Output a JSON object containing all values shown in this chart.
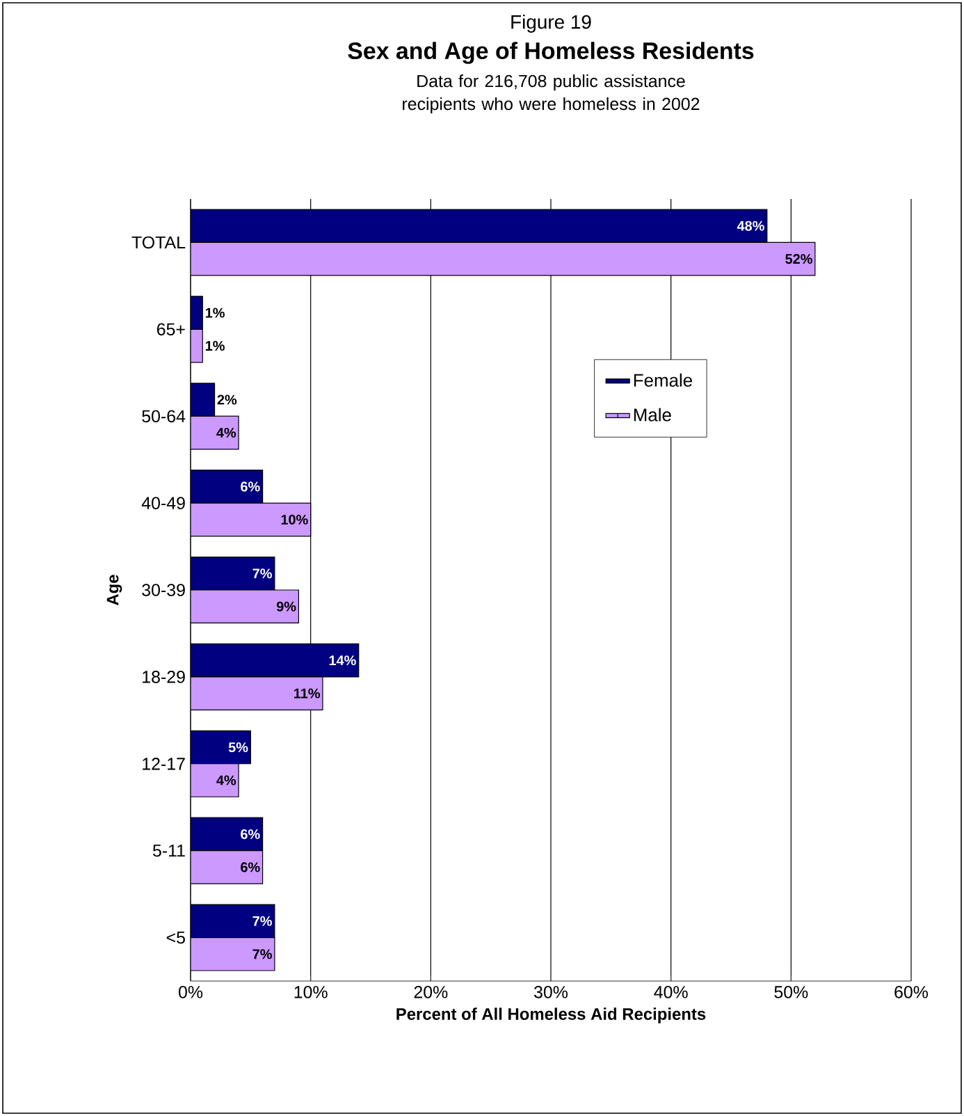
{
  "chart_data": {
    "type": "bar",
    "orientation": "horizontal",
    "title": "Sex and Age of Homeless Residents",
    "subtitle": "Data for 216,708 public assistance recipients who were homeless in 2002",
    "annotations": [
      "Figure 19"
    ],
    "xlabel": "Percent of All Homeless Aid Recipients",
    "ylabel": "Age",
    "categories": [
      "TOTAL",
      "65+",
      "50-64",
      "40-49",
      "30-39",
      "18-29",
      "12-17",
      "5-11",
      "<5"
    ],
    "series": [
      {
        "name": "Female",
        "color": "#000080",
        "values": [
          48,
          1,
          2,
          6,
          7,
          14,
          5,
          6,
          7
        ],
        "value_labels": [
          "48%",
          "1%",
          "2%",
          "6%",
          "7%",
          "14%",
          "5%",
          "6%",
          "7%"
        ]
      },
      {
        "name": "Male",
        "color": "#cc99ff",
        "values": [
          52,
          1,
          4,
          10,
          9,
          11,
          4,
          6,
          7
        ],
        "value_labels": [
          "52%",
          "1%",
          "4%",
          "10%",
          "9%",
          "11%",
          "4%",
          "6%",
          "7%"
        ]
      }
    ],
    "xlim": [
      0,
      60
    ],
    "xticks": [
      {
        "value": 0,
        "label": "0%"
      },
      {
        "value": 10,
        "label": "10%"
      },
      {
        "value": 20,
        "label": "20%"
      },
      {
        "value": 30,
        "label": "30%"
      },
      {
        "value": 40,
        "label": "40%"
      },
      {
        "value": 50,
        "label": "50%"
      },
      {
        "value": 60,
        "label": "60%"
      }
    ],
    "grid": "x",
    "legend": "right"
  }
}
